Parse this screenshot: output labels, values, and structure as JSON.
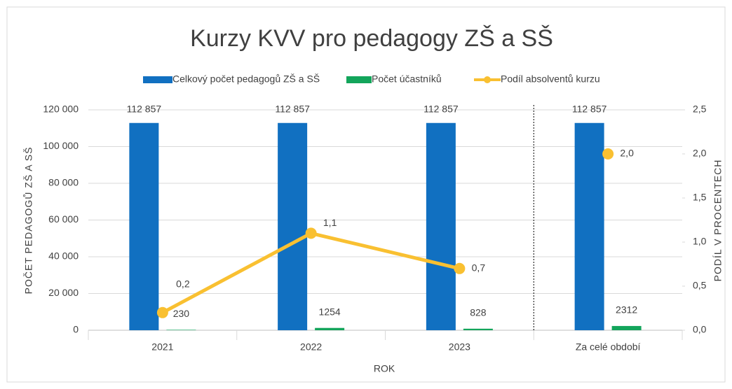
{
  "chart_data": {
    "type": "bar_line",
    "title": "Kurzy KVV pro pedagogy ZŠ a SŠ",
    "xlabel": "ROK",
    "ylabel": "POČET PEDAGOGŮ ZŠ A SŠ",
    "y2label": "PODÍL V PROCENTECH",
    "categories": [
      "2021",
      "2022",
      "2023",
      "Za celé období"
    ],
    "separator_after": 2,
    "grid": true,
    "legend": "top",
    "series": [
      {
        "name": "Celkový počet pedagogů ZŠ a SŠ",
        "type": "bar",
        "color": "#1170c1",
        "values": [
          112857,
          112857,
          112857,
          112857
        ],
        "value_labels": [
          "112 857",
          "112 857",
          "112 857",
          "112 857"
        ]
      },
      {
        "name": "Počet účastníků",
        "type": "bar",
        "color": "#13a55b",
        "values": [
          230,
          1254,
          828,
          2312
        ]
      },
      {
        "name": "Podíl absolventů kurzu",
        "type": "line",
        "axis": "y2",
        "color": "#f9c031",
        "values": [
          0.2,
          1.1,
          0.7,
          2.0
        ],
        "value_labels": [
          "0,2",
          "1,1",
          "0,7",
          "2,0"
        ]
      }
    ],
    "ylim": [
      0,
      120000
    ],
    "yticks": [
      0,
      {
        "value": 20000,
        "label": "20 000"
      },
      {
        "value": 40000,
        "label": "40 000"
      },
      {
        "value": 60000,
        "label": "60 000"
      },
      {
        "value": 80000,
        "label": "80 000"
      },
      {
        "value": 100000,
        "label": "100 000"
      },
      {
        "value": 120000,
        "label": "120 000"
      }
    ],
    "y2lim": [
      0,
      2.5
    ],
    "y2ticks": [
      {
        "value": 0,
        "label": "0,0"
      },
      {
        "value": 0.5,
        "label": "0,5"
      },
      {
        "value": 1,
        "label": "1,0"
      },
      {
        "value": 1.5,
        "label": "1,5"
      },
      {
        "value": 2,
        "label": "2,0"
      },
      {
        "value": 2.5,
        "label": "2,5"
      }
    ]
  }
}
